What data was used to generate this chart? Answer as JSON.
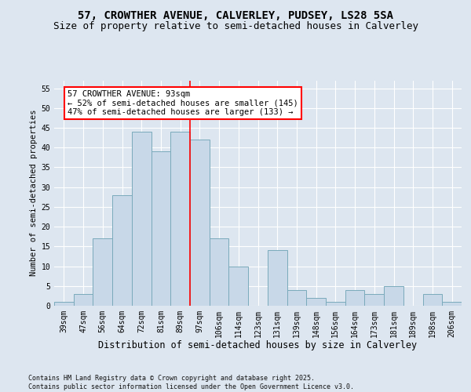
{
  "title": "57, CROWTHER AVENUE, CALVERLEY, PUDSEY, LS28 5SA",
  "subtitle": "Size of property relative to semi-detached houses in Calverley",
  "xlabel": "Distribution of semi-detached houses by size in Calverley",
  "ylabel": "Number of semi-detached properties",
  "categories": [
    "39sqm",
    "47sqm",
    "56sqm",
    "64sqm",
    "72sqm",
    "81sqm",
    "89sqm",
    "97sqm",
    "106sqm",
    "114sqm",
    "123sqm",
    "131sqm",
    "139sqm",
    "148sqm",
    "156sqm",
    "164sqm",
    "173sqm",
    "181sqm",
    "189sqm",
    "198sqm",
    "206sqm"
  ],
  "values": [
    1,
    3,
    17,
    28,
    44,
    39,
    44,
    42,
    17,
    10,
    0,
    14,
    4,
    2,
    1,
    4,
    3,
    5,
    0,
    3,
    1
  ],
  "bar_color": "#c8d8e8",
  "bar_edge_color": "#7aaabb",
  "vline_x": 6.5,
  "vline_color": "red",
  "annotation_text": "57 CROWTHER AVENUE: 93sqm\n← 52% of semi-detached houses are smaller (145)\n47% of semi-detached houses are larger (133) →",
  "ylim_max": 57,
  "yticks": [
    0,
    5,
    10,
    15,
    20,
    25,
    30,
    35,
    40,
    45,
    50,
    55
  ],
  "background_color": "#dde6f0",
  "grid_color": "#ffffff",
  "footer": "Contains HM Land Registry data © Crown copyright and database right 2025.\nContains public sector information licensed under the Open Government Licence v3.0.",
  "title_fontsize": 10,
  "subtitle_fontsize": 9,
  "xlabel_fontsize": 8.5,
  "ylabel_fontsize": 7.5,
  "tick_fontsize": 7,
  "annotation_fontsize": 7.5,
  "footer_fontsize": 6
}
